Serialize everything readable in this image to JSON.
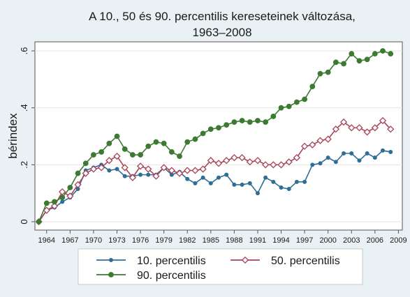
{
  "chart_data": {
    "type": "line",
    "title_line1": "A 10., 50 és 90. percentilis kereseteinek változása,",
    "title_line2": "1963–2008",
    "ylabel": "bérindex",
    "xlabel": "",
    "xlim": [
      1962.5,
      2009.5
    ],
    "ylim": [
      0,
      0.6
    ],
    "x_ticks": [
      "1964",
      "1967",
      "1970",
      "1973",
      "1976",
      "1979",
      "1982",
      "1985",
      "1988",
      "1991",
      "1994",
      "1997",
      "2000",
      "2003",
      "2006",
      "2009"
    ],
    "y_ticks": [
      "0",
      ".2",
      ".4",
      ".6"
    ],
    "grid": "horizontal",
    "legend_position": "bottom",
    "x": [
      1963,
      1964,
      1965,
      1966,
      1967,
      1968,
      1969,
      1970,
      1971,
      1972,
      1973,
      1974,
      1975,
      1976,
      1977,
      1978,
      1979,
      1980,
      1981,
      1982,
      1983,
      1984,
      1985,
      1986,
      1987,
      1988,
      1989,
      1990,
      1991,
      1992,
      1993,
      1994,
      1995,
      1996,
      1997,
      1998,
      1999,
      2000,
      2001,
      2002,
      2003,
      2004,
      2005,
      2006,
      2007,
      2008
    ],
    "series": [
      {
        "name": "10. percentilis",
        "color": "#2f6e96",
        "marker": "circle-small",
        "values": [
          0.0,
          0.04,
          0.05,
          0.07,
          0.085,
          0.115,
          0.18,
          0.19,
          0.2,
          0.18,
          0.185,
          0.16,
          0.16,
          0.165,
          0.165,
          0.165,
          0.19,
          0.165,
          0.175,
          0.15,
          0.135,
          0.155,
          0.135,
          0.155,
          0.165,
          0.13,
          0.13,
          0.135,
          0.1,
          0.155,
          0.14,
          0.12,
          0.115,
          0.14,
          0.14,
          0.2,
          0.205,
          0.225,
          0.21,
          0.24,
          0.24,
          0.215,
          0.24,
          0.225,
          0.25,
          0.245
        ]
      },
      {
        "name": "50. percentilis",
        "color": "#a8435a",
        "marker": "diamond",
        "values": [
          0.0,
          0.04,
          0.055,
          0.105,
          0.09,
          0.13,
          0.17,
          0.185,
          0.19,
          0.215,
          0.23,
          0.19,
          0.155,
          0.195,
          0.185,
          0.16,
          0.19,
          0.18,
          0.17,
          0.18,
          0.18,
          0.185,
          0.215,
          0.205,
          0.215,
          0.225,
          0.225,
          0.21,
          0.215,
          0.2,
          0.2,
          0.2,
          0.21,
          0.225,
          0.265,
          0.27,
          0.285,
          0.29,
          0.325,
          0.35,
          0.33,
          0.33,
          0.315,
          0.33,
          0.355,
          0.325
        ]
      },
      {
        "name": "90. percentilis",
        "color": "#3d7a31",
        "marker": "circle-large",
        "values": [
          0.0,
          0.065,
          0.07,
          0.085,
          0.12,
          0.17,
          0.205,
          0.235,
          0.245,
          0.275,
          0.3,
          0.255,
          0.235,
          0.235,
          0.265,
          0.28,
          0.275,
          0.245,
          0.23,
          0.28,
          0.29,
          0.31,
          0.325,
          0.33,
          0.34,
          0.35,
          0.355,
          0.35,
          0.355,
          0.35,
          0.37,
          0.4,
          0.405,
          0.42,
          0.43,
          0.475,
          0.52,
          0.525,
          0.56,
          0.555,
          0.59,
          0.565,
          0.57,
          0.59,
          0.6,
          0.59
        ]
      }
    ]
  }
}
